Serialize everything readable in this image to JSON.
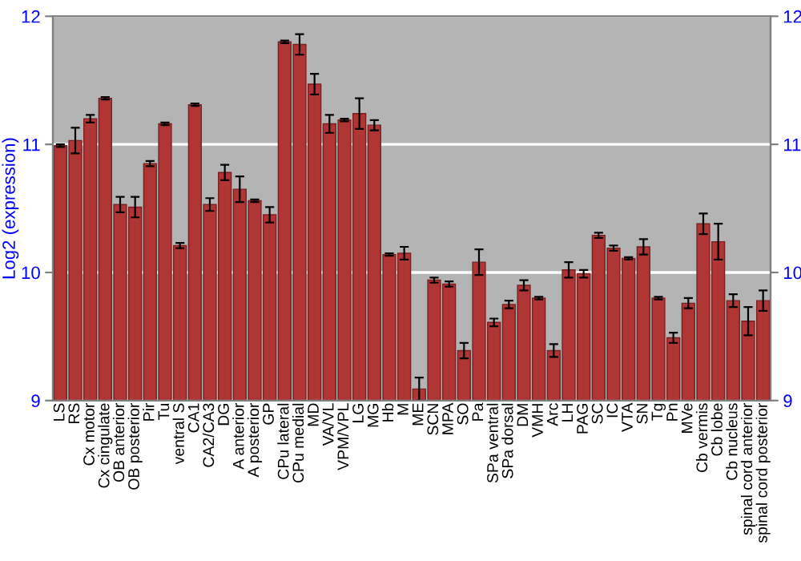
{
  "chart_data": {
    "type": "bar",
    "ylabel": "Log2 (expression)",
    "categories": [
      "LS",
      "RS",
      "Cx motor",
      "Cx cingulate",
      "OB anterior",
      "OB posterior",
      "Pir",
      "Tu",
      "ventral S",
      "CA1",
      "CA2/CA3",
      "DG",
      "A anterior",
      "A posterior",
      "GP",
      "CPu lateral",
      "CPu medial",
      "MD",
      "VA/VL",
      "VPM/VPL",
      "LG",
      "MG",
      "Hb",
      "M",
      "ME",
      "SCN",
      "MPA",
      "SO",
      "Pa",
      "SPa ventral",
      "SPa dorsal",
      "DM",
      "VMH",
      "Arc",
      "LH",
      "PAG",
      "SC",
      "IC",
      "VTA",
      "SN",
      "Tg",
      "Pn",
      "MVe",
      "Cb vermis",
      "Cb lobe",
      "Cb nucleus",
      "spinal cord anterior",
      "spinal cord posterior"
    ],
    "values": [
      10.99,
      11.03,
      11.2,
      11.36,
      10.53,
      10.51,
      10.85,
      11.16,
      10.21,
      11.31,
      10.53,
      10.78,
      10.65,
      10.56,
      10.45,
      11.8,
      11.78,
      11.47,
      11.16,
      11.19,
      11.24,
      11.15,
      10.14,
      10.15,
      9.09,
      9.94,
      9.91,
      9.39,
      10.08,
      9.61,
      9.75,
      9.9,
      9.8,
      9.39,
      10.02,
      9.99,
      10.29,
      10.19,
      10.11,
      10.2,
      9.8,
      9.49,
      9.76,
      10.38,
      10.24,
      9.78,
      9.62,
      9.78
    ],
    "errors": [
      0.01,
      0.1,
      0.03,
      0.01,
      0.06,
      0.08,
      0.02,
      0.01,
      0.02,
      0.01,
      0.05,
      0.06,
      0.1,
      0.01,
      0.06,
      0.01,
      0.08,
      0.08,
      0.07,
      0.01,
      0.12,
      0.04,
      0.01,
      0.05,
      0.09,
      0.02,
      0.02,
      0.06,
      0.1,
      0.03,
      0.03,
      0.04,
      0.01,
      0.05,
      0.06,
      0.03,
      0.02,
      0.02,
      0.01,
      0.06,
      0.01,
      0.04,
      0.04,
      0.08,
      0.14,
      0.05,
      0.11,
      0.08
    ],
    "color": "#b03535",
    "ylim": [
      9,
      12
    ],
    "yticks": [
      9,
      10,
      11,
      12
    ],
    "y2lim": [
      9,
      12
    ],
    "y2ticks": [
      9,
      10,
      11,
      12
    ],
    "grid": "y"
  }
}
